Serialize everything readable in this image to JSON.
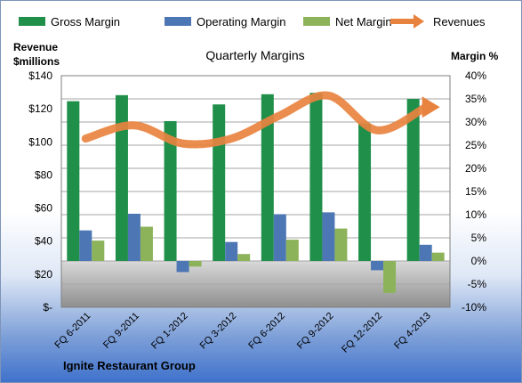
{
  "chart_data": {
    "type": "bar",
    "title": "Quarterly Margins",
    "company": "Ignite Restaurant Group",
    "categories": [
      "FQ 6-2011",
      "FQ 9-2011",
      "FQ 1-2012",
      "FQ 3-2012",
      "FQ 6-2012",
      "FQ 9-2012",
      "FQ 12-2012",
      "FQ 4-2013"
    ],
    "left_axis": {
      "label_line1": "Revenue",
      "label_line2": "$millions",
      "ticks": [
        "$140",
        "$120",
        "$100",
        "$80",
        "$60",
        "$40",
        "$20",
        "$-"
      ],
      "ylim": [
        0,
        140
      ]
    },
    "right_axis": {
      "label": "Margin %",
      "ticks": [
        "40%",
        "35%",
        "30%",
        "25%",
        "20%",
        "15%",
        "10%",
        "5%",
        "0%",
        "-5%",
        "-10%"
      ],
      "ylim": [
        -10,
        40
      ]
    },
    "series": [
      {
        "name": "Gross Margin",
        "axis": "right",
        "kind": "bar",
        "color": "#1f8f4a",
        "values": [
          34.5,
          35.8,
          30.2,
          33.8,
          36.0,
          36.3,
          29.7,
          35.0
        ]
      },
      {
        "name": "Operating Margin",
        "axis": "right",
        "kind": "bar",
        "color": "#4d76b4",
        "values": [
          6.6,
          10.2,
          -2.4,
          4.1,
          10.1,
          10.5,
          -2.0,
          3.5
        ]
      },
      {
        "name": "Net Margin",
        "axis": "right",
        "kind": "bar",
        "color": "#8db35a",
        "values": [
          4.4,
          7.4,
          -1.2,
          1.5,
          4.6,
          7.0,
          -6.9,
          1.8
        ]
      },
      {
        "name": "Revenues",
        "axis": "left",
        "kind": "line",
        "color": "#e8833f",
        "values": [
          102,
          110,
          99,
          102,
          116,
          128,
          107,
          121
        ]
      }
    ],
    "grid": true,
    "legend_position": "top"
  }
}
